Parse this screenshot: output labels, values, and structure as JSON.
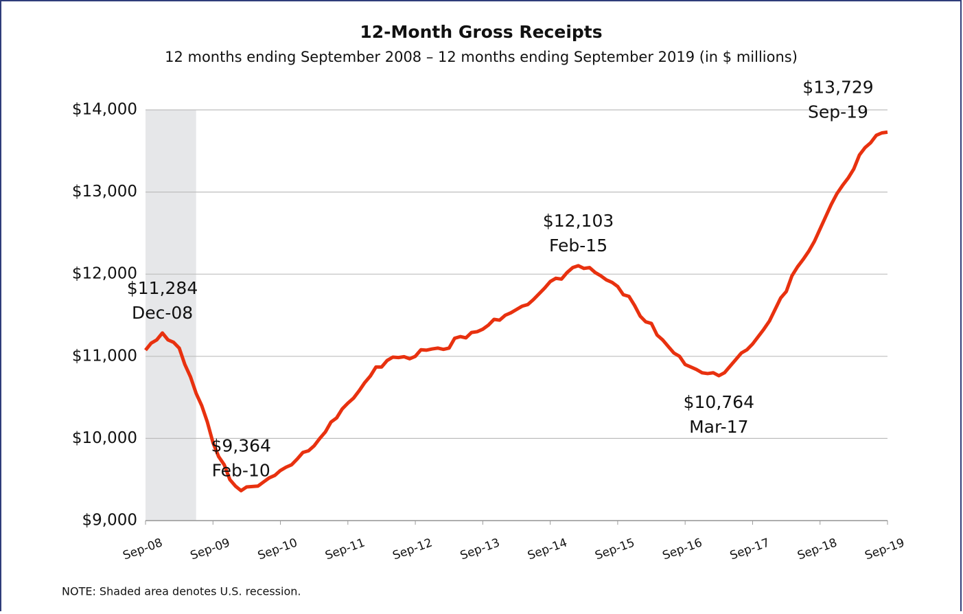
{
  "chart_data": {
    "type": "line",
    "title": "12-Month Gross Receipts",
    "subtitle": "12 months ending September 2008 – 12 months ending September 2019 (in $ millions)",
    "note": "NOTE: Shaded area denotes U.S. recession.",
    "recession_range": [
      0,
      9
    ],
    "categories": [
      "Sep-08",
      null,
      null,
      null,
      null,
      null,
      null,
      null,
      null,
      null,
      null,
      null,
      "Sep-09",
      null,
      null,
      null,
      null,
      null,
      null,
      null,
      null,
      null,
      null,
      null,
      "Sep-10",
      null,
      null,
      null,
      null,
      null,
      null,
      null,
      null,
      null,
      null,
      null,
      "Sep-11",
      null,
      null,
      null,
      null,
      null,
      null,
      null,
      null,
      null,
      null,
      null,
      "Sep-12",
      null,
      null,
      null,
      null,
      null,
      null,
      null,
      null,
      null,
      null,
      null,
      "Sep-13",
      null,
      null,
      null,
      null,
      null,
      null,
      null,
      null,
      null,
      null,
      null,
      "Sep-14",
      null,
      null,
      null,
      null,
      null,
      null,
      null,
      null,
      null,
      null,
      null,
      "Sep-15",
      null,
      null,
      null,
      null,
      null,
      null,
      null,
      null,
      null,
      null,
      null,
      "Sep-16",
      null,
      null,
      null,
      null,
      null,
      null,
      null,
      null,
      null,
      null,
      null,
      "Sep-17",
      null,
      null,
      null,
      null,
      null,
      null,
      null,
      null,
      null,
      null,
      null,
      "Sep-18",
      null,
      null,
      null,
      null,
      null,
      null,
      null,
      null,
      null,
      null,
      null,
      "Sep-19"
    ],
    "series": [
      {
        "name": "12-Month Gross Receipts",
        "color": "#e8310f",
        "values": [
          11075,
          11160,
          11200,
          11284,
          11200,
          11170,
          11100,
          10900,
          10750,
          10550,
          10400,
          10200,
          9950,
          9780,
          9680,
          9500,
          9420,
          9364,
          9410,
          9415,
          9420,
          9470,
          9520,
          9550,
          9610,
          9650,
          9680,
          9750,
          9830,
          9850,
          9910,
          10000,
          10080,
          10200,
          10250,
          10360,
          10430,
          10490,
          10580,
          10680,
          10760,
          10870,
          10870,
          10950,
          10990,
          10985,
          10995,
          10970,
          11000,
          11080,
          11075,
          11090,
          11100,
          11085,
          11100,
          11220,
          11240,
          11225,
          11290,
          11300,
          11330,
          11380,
          11450,
          11440,
          11500,
          11530,
          11570,
          11610,
          11630,
          11690,
          11760,
          11830,
          11910,
          11950,
          11940,
          12020,
          12080,
          12103,
          12070,
          12080,
          12020,
          11980,
          11930,
          11900,
          11850,
          11750,
          11730,
          11620,
          11490,
          11420,
          11400,
          11260,
          11200,
          11120,
          11040,
          11000,
          10900,
          10870,
          10840,
          10800,
          10790,
          10800,
          10764,
          10800,
          10880,
          10960,
          11040,
          11080,
          11150,
          11240,
          11330,
          11430,
          11570,
          11710,
          11790,
          11980,
          12090,
          12180,
          12280,
          12400,
          12550,
          12700,
          12850,
          12980,
          13080,
          13170,
          13280,
          13450,
          13540,
          13600,
          13690,
          13720,
          13729
        ],
        "value_labels": [
          null,
          null,
          null,
          "$11,284",
          null,
          null,
          null,
          null,
          null,
          null,
          null,
          null,
          null,
          null,
          null,
          null,
          null,
          "$9,364",
          null,
          null,
          null,
          null,
          null,
          null,
          null,
          null,
          null,
          null,
          null,
          null,
          null,
          null,
          null,
          null,
          null,
          null,
          null,
          null,
          null,
          null,
          null,
          null,
          null,
          null,
          null,
          null,
          null,
          null,
          null,
          null,
          null,
          null,
          null,
          null,
          null,
          null,
          null,
          null,
          null,
          null,
          null,
          null,
          null,
          null,
          null,
          null,
          null,
          null,
          null,
          null,
          null,
          null,
          null,
          null,
          null,
          null,
          null,
          "$12,103",
          null,
          null,
          null,
          null,
          null,
          null,
          null,
          null,
          null,
          null,
          null,
          null,
          null,
          null,
          null,
          null,
          null,
          null,
          null,
          null,
          null,
          null,
          null,
          null,
          "$10,764",
          null,
          null,
          null,
          null,
          null,
          null,
          null,
          null,
          null,
          null,
          null,
          null,
          null,
          null,
          null,
          null,
          null,
          null,
          null,
          null,
          null,
          null,
          null,
          null,
          null,
          null,
          null,
          null,
          null,
          "$13,729"
        ],
        "date_labels": [
          null,
          null,
          null,
          "Dec-08",
          null,
          null,
          null,
          null,
          null,
          null,
          null,
          null,
          null,
          null,
          null,
          null,
          null,
          "Feb-10",
          null,
          null,
          null,
          null,
          null,
          null,
          null,
          null,
          null,
          null,
          null,
          null,
          null,
          null,
          null,
          null,
          null,
          null,
          null,
          null,
          null,
          null,
          null,
          null,
          null,
          null,
          null,
          null,
          null,
          null,
          null,
          null,
          null,
          null,
          null,
          null,
          null,
          null,
          null,
          null,
          null,
          null,
          null,
          null,
          null,
          null,
          null,
          null,
          null,
          null,
          null,
          null,
          null,
          null,
          null,
          null,
          null,
          null,
          null,
          "Feb-15",
          null,
          null,
          null,
          null,
          null,
          null,
          null,
          null,
          null,
          null,
          null,
          null,
          null,
          null,
          null,
          null,
          null,
          null,
          null,
          null,
          null,
          null,
          null,
          null,
          "Mar-17",
          null,
          null,
          null,
          null,
          null,
          null,
          null,
          null,
          null,
          null,
          null,
          null,
          null,
          null,
          null,
          null,
          null,
          null,
          null,
          null,
          null,
          null,
          null,
          null,
          null,
          null,
          null,
          null,
          null,
          "Sep-19"
        ]
      }
    ],
    "ylim": [
      9000,
      14000
    ],
    "yticks": [
      {
        "value": 9000,
        "label": "$9,000"
      },
      {
        "value": 10000,
        "label": "$10,000"
      },
      {
        "value": 11000,
        "label": "$11,000"
      },
      {
        "value": 12000,
        "label": "$12,000"
      },
      {
        "value": 13000,
        "label": "$13,000"
      },
      {
        "value": 14000,
        "label": "$14,000"
      }
    ],
    "grid": true,
    "recession_color": "#e6e7e9"
  }
}
